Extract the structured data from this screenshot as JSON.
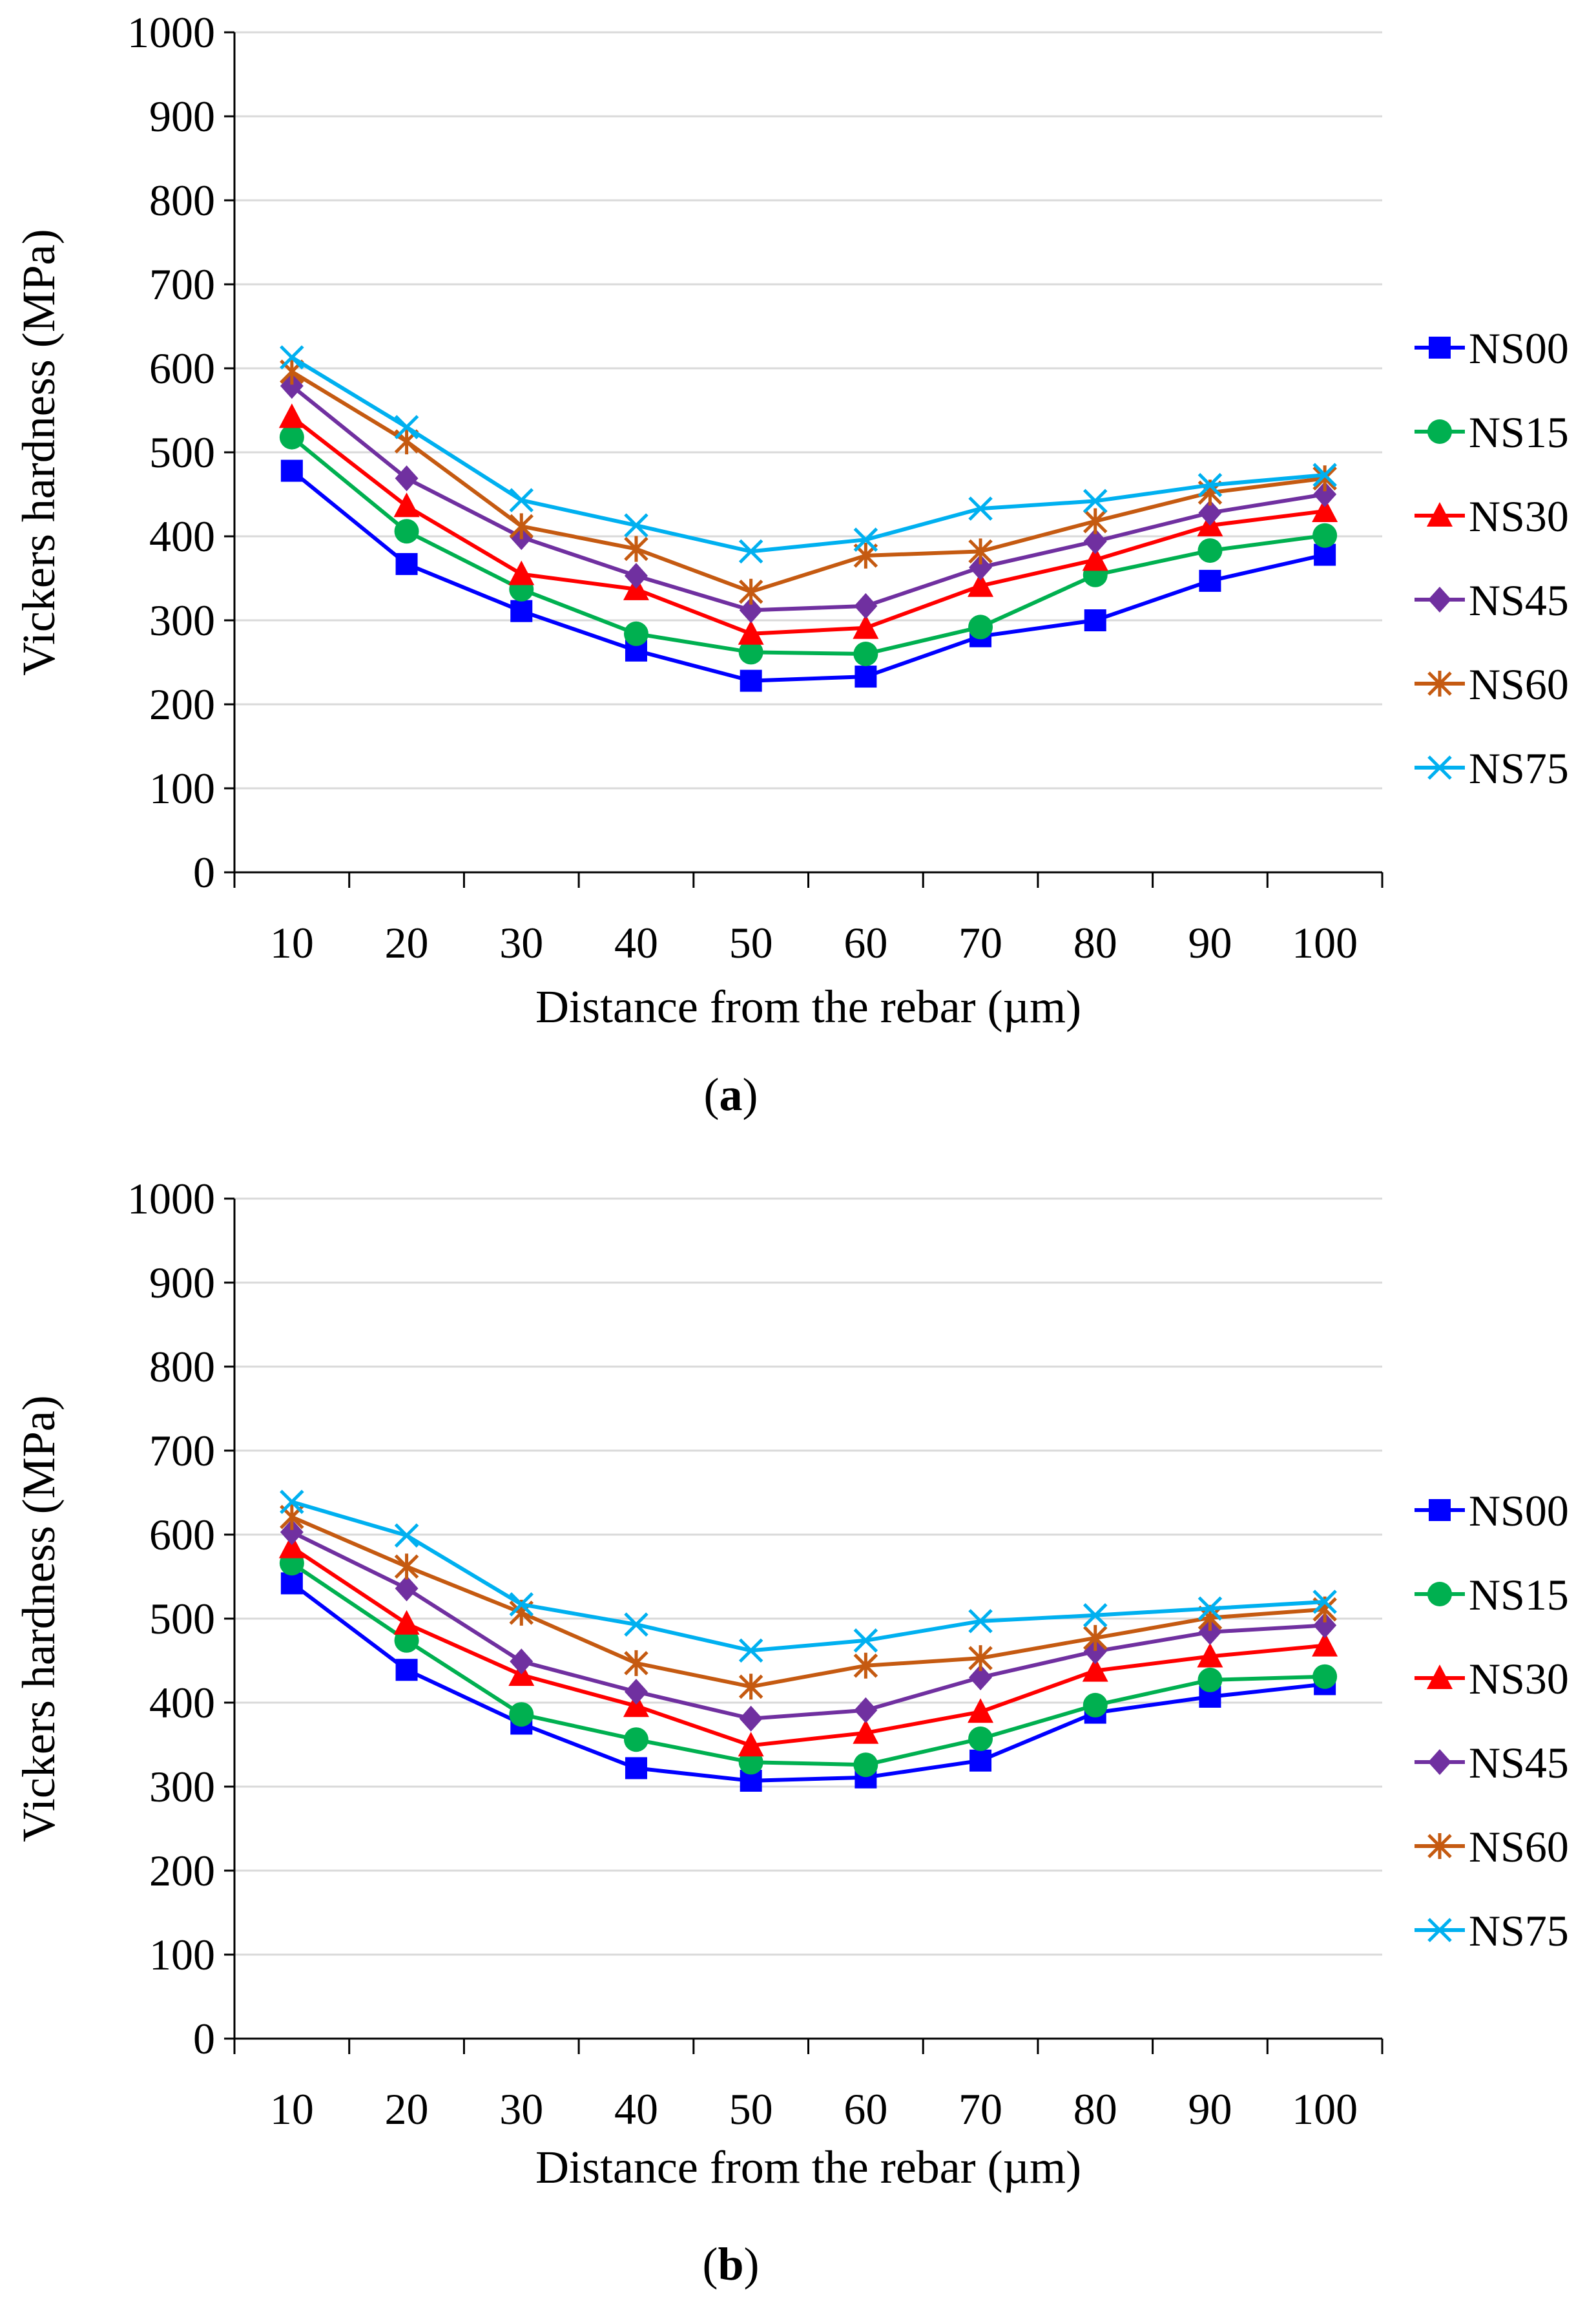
{
  "charts": [
    {
      "id": "a",
      "caption": {
        "open": "(",
        "letter": "a",
        "close": ")"
      },
      "chart_data": {
        "type": "line",
        "title": "",
        "xlabel": "Distance from the rebar (µm)",
        "ylabel": "Vickers hardness (MPa)",
        "categories": [
          "10",
          "20",
          "30",
          "40",
          "50",
          "60",
          "70",
          "80",
          "90",
          "100"
        ],
        "yticks": [
          "0",
          "100",
          "200",
          "300",
          "400",
          "500",
          "600",
          "700",
          "800",
          "900",
          "1000"
        ],
        "ylim": [
          0,
          1000
        ],
        "grid": true,
        "legend_position": "right",
        "series": [
          {
            "name": "NS00",
            "color": "#0000FF",
            "marker": "square",
            "values": [
              478,
              367,
              311,
              264,
              228,
              233,
              281,
              300,
              347,
              378
            ]
          },
          {
            "name": "NS15",
            "color": "#00B050",
            "marker": "circle",
            "values": [
              518,
              406,
              337,
              284,
              262,
              260,
              292,
              354,
              383,
              401
            ]
          },
          {
            "name": "NS30",
            "color": "#FF0000",
            "marker": "triangle",
            "values": [
              542,
              436,
              355,
              337,
              284,
              291,
              341,
              372,
              413,
              430
            ]
          },
          {
            "name": "NS45",
            "color": "#7030A0",
            "marker": "diamond",
            "values": [
              579,
              469,
              399,
              353,
              312,
              317,
              363,
              394,
              428,
              450
            ]
          },
          {
            "name": "NS60",
            "color": "#C55A11",
            "marker": "asterisk",
            "values": [
              596,
              513,
              412,
              385,
              334,
              377,
              382,
              418,
              452,
              469
            ]
          },
          {
            "name": "NS75",
            "color": "#00B0F0",
            "marker": "x",
            "values": [
              613,
              530,
              443,
              413,
              382,
              396,
              433,
              442,
              461,
              473
            ]
          }
        ]
      }
    },
    {
      "id": "b",
      "caption": {
        "open": "(",
        "letter": "b",
        "close": ")"
      },
      "chart_data": {
        "type": "line",
        "title": "",
        "xlabel": "Distance from the rebar (µm)",
        "ylabel": "Vickers hardness (MPa)",
        "categories": [
          "10",
          "20",
          "30",
          "40",
          "50",
          "60",
          "70",
          "80",
          "90",
          "100"
        ],
        "yticks": [
          "0",
          "100",
          "200",
          "300",
          "400",
          "500",
          "600",
          "700",
          "800",
          "900",
          "1000"
        ],
        "ylim": [
          0,
          1000
        ],
        "grid": true,
        "legend_position": "right",
        "series": [
          {
            "name": "NS00",
            "color": "#0000FF",
            "marker": "square",
            "values": [
              542,
              439,
              375,
              322,
              307,
              311,
              331,
              388,
              407,
              422
            ]
          },
          {
            "name": "NS15",
            "color": "#00B050",
            "marker": "circle",
            "values": [
              566,
              474,
              386,
              356,
              329,
              326,
              357,
              397,
              427,
              431
            ]
          },
          {
            "name": "NS30",
            "color": "#FF0000",
            "marker": "triangle",
            "values": [
              585,
              494,
              433,
              396,
              349,
              364,
              389,
              438,
              455,
              468
            ]
          },
          {
            "name": "NS45",
            "color": "#7030A0",
            "marker": "diamond",
            "values": [
              603,
              536,
              449,
              413,
              381,
              391,
              430,
              461,
              484,
              492
            ]
          },
          {
            "name": "NS60",
            "color": "#C55A11",
            "marker": "asterisk",
            "values": [
              621,
              562,
              507,
              447,
              419,
              444,
              453,
              477,
              501,
              511
            ]
          },
          {
            "name": "NS75",
            "color": "#00B0F0",
            "marker": "x",
            "values": [
              639,
              599,
              517,
              493,
              462,
              474,
              497,
              504,
              512,
              520
            ]
          }
        ]
      }
    }
  ]
}
